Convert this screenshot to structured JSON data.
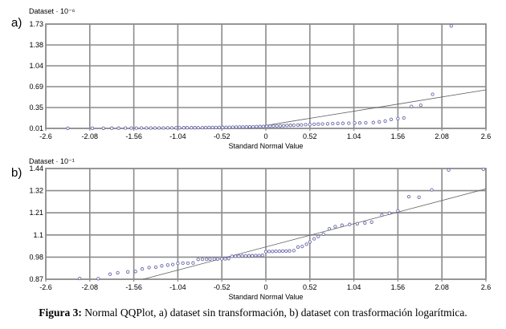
{
  "figure": {
    "caption_label": "Figura 3:",
    "caption_text": " Normal QQPlot, a) dataset sin transformación, b) dataset con trasformación logarítmica."
  },
  "style": {
    "grid_color": "#8b8b8b",
    "marker_color": "#6b6bab",
    "line_color": "#5c5c5c",
    "text_color": "#000000",
    "background": "#ffffff"
  },
  "chart_data": [
    {
      "type": "scatter",
      "panel": "a)",
      "ylabel": "Dataset · 10⁻⁶",
      "xlabel": "Standard Normal Value",
      "legend": null,
      "grid": true,
      "xlim": [
        -2.6,
        2.6
      ],
      "ylim": [
        0.01,
        1.73
      ],
      "xtick_labels": [
        "-2.6",
        "-2.08",
        "-1.56",
        "-1.04",
        "-0.52",
        "0",
        "0.52",
        "1.04",
        "1.56",
        "2.08",
        "2.6"
      ],
      "ytick_labels": [
        "1.73",
        "1.38",
        "1.04",
        "0.69",
        "0.35",
        "0.01"
      ],
      "reference_line": [
        [
          -0.215,
          0.01
        ],
        [
          2.6,
          0.645
        ]
      ],
      "points": [
        [
          -2.34,
          0.012
        ],
        [
          -2.05,
          0.013
        ],
        [
          -1.92,
          0.013
        ],
        [
          -1.82,
          0.014
        ],
        [
          -1.74,
          0.014
        ],
        [
          -1.66,
          0.015
        ],
        [
          -1.59,
          0.015
        ],
        [
          -1.53,
          0.015
        ],
        [
          -1.47,
          0.016
        ],
        [
          -1.41,
          0.016
        ],
        [
          -1.36,
          0.016
        ],
        [
          -1.31,
          0.017
        ],
        [
          -1.26,
          0.017
        ],
        [
          -1.21,
          0.017
        ],
        [
          -1.16,
          0.018
        ],
        [
          -1.11,
          0.018
        ],
        [
          -1.06,
          0.019
        ],
        [
          -1.02,
          0.019
        ],
        [
          -0.97,
          0.02
        ],
        [
          -0.93,
          0.02
        ],
        [
          -0.88,
          0.021
        ],
        [
          -0.84,
          0.021
        ],
        [
          -0.8,
          0.022
        ],
        [
          -0.75,
          0.022
        ],
        [
          -0.71,
          0.023
        ],
        [
          -0.67,
          0.024
        ],
        [
          -0.63,
          0.024
        ],
        [
          -0.59,
          0.025
        ],
        [
          -0.55,
          0.026
        ],
        [
          -0.51,
          0.027
        ],
        [
          -0.47,
          0.028
        ],
        [
          -0.43,
          0.029
        ],
        [
          -0.39,
          0.03
        ],
        [
          -0.35,
          0.031
        ],
        [
          -0.31,
          0.032
        ],
        [
          -0.27,
          0.033
        ],
        [
          -0.23,
          0.034
        ],
        [
          -0.19,
          0.036
        ],
        [
          -0.15,
          0.037
        ],
        [
          -0.11,
          0.039
        ],
        [
          -0.07,
          0.04
        ],
        [
          -0.03,
          0.042
        ],
        [
          0.01,
          0.044
        ],
        [
          0.05,
          0.046
        ],
        [
          0.09,
          0.048
        ],
        [
          0.13,
          0.05
        ],
        [
          0.17,
          0.052
        ],
        [
          0.21,
          0.055
        ],
        [
          0.25,
          0.057
        ],
        [
          0.29,
          0.06
        ],
        [
          0.33,
          0.062
        ],
        [
          0.38,
          0.065
        ],
        [
          0.42,
          0.068
        ],
        [
          0.47,
          0.071
        ],
        [
          0.52,
          0.074
        ],
        [
          0.57,
          0.077
        ],
        [
          0.62,
          0.08
        ],
        [
          0.67,
          0.083
        ],
        [
          0.73,
          0.086
        ],
        [
          0.79,
          0.089
        ],
        [
          0.85,
          0.092
        ],
        [
          0.91,
          0.094
        ],
        [
          0.98,
          0.096
        ],
        [
          1.05,
          0.098
        ],
        [
          1.11,
          0.1
        ],
        [
          1.18,
          0.103
        ],
        [
          1.27,
          0.106
        ],
        [
          1.34,
          0.118
        ],
        [
          1.41,
          0.132
        ],
        [
          1.48,
          0.158
        ],
        [
          1.56,
          0.172
        ],
        [
          1.63,
          0.182
        ],
        [
          1.72,
          0.372
        ],
        [
          1.83,
          0.392
        ],
        [
          1.97,
          0.572
        ],
        [
          2.19,
          1.7
        ]
      ]
    },
    {
      "type": "scatter",
      "panel": "b)",
      "ylabel": "Dataset · 10⁻¹",
      "xlabel": "Standard Normal Value",
      "legend": null,
      "grid": true,
      "xlim": [
        -2.6,
        2.6
      ],
      "ylim": [
        0.87,
        1.44
      ],
      "xtick_labels": [
        "-2.6",
        "-2.08",
        "-1.56",
        "-1.04",
        "-0.52",
        "0",
        "0.52",
        "1.04",
        "1.56",
        "2.08",
        "2.6"
      ],
      "ytick_labels": [
        "1.44",
        "1.32",
        "1.21",
        "1.1",
        "0.98",
        "0.87"
      ],
      "reference_line": [
        [
          -1.45,
          0.87
        ],
        [
          2.6,
          1.335
        ]
      ],
      "points": [
        [
          -2.2,
          0.874
        ],
        [
          -1.98,
          0.873
        ],
        [
          -1.84,
          0.896
        ],
        [
          -1.75,
          0.903
        ],
        [
          -1.63,
          0.908
        ],
        [
          -1.54,
          0.91
        ],
        [
          -1.46,
          0.923
        ],
        [
          -1.38,
          0.93
        ],
        [
          -1.3,
          0.932
        ],
        [
          -1.23,
          0.939
        ],
        [
          -1.16,
          0.943
        ],
        [
          -1.1,
          0.946
        ],
        [
          -1.04,
          0.952
        ],
        [
          -0.98,
          0.953
        ],
        [
          -0.92,
          0.953
        ],
        [
          -0.86,
          0.954
        ],
        [
          -0.8,
          0.972
        ],
        [
          -0.75,
          0.973
        ],
        [
          -0.7,
          0.973
        ],
        [
          -0.66,
          0.974
        ],
        [
          -0.61,
          0.974
        ],
        [
          -0.57,
          0.974
        ],
        [
          -0.52,
          0.975
        ],
        [
          -0.48,
          0.975
        ],
        [
          -0.44,
          0.976
        ],
        [
          -0.4,
          0.988
        ],
        [
          -0.36,
          0.989
        ],
        [
          -0.32,
          0.989
        ],
        [
          -0.28,
          0.99
        ],
        [
          -0.24,
          0.99
        ],
        [
          -0.2,
          0.991
        ],
        [
          -0.16,
          0.991
        ],
        [
          -0.12,
          0.992
        ],
        [
          -0.08,
          0.992
        ],
        [
          -0.04,
          0.993
        ],
        [
          0.0,
          1.012
        ],
        [
          0.04,
          1.013
        ],
        [
          0.08,
          1.013
        ],
        [
          0.12,
          1.014
        ],
        [
          0.16,
          1.014
        ],
        [
          0.2,
          1.015
        ],
        [
          0.24,
          1.015
        ],
        [
          0.28,
          1.016
        ],
        [
          0.33,
          1.017
        ],
        [
          0.38,
          1.036
        ],
        [
          0.43,
          1.039
        ],
        [
          0.48,
          1.05
        ],
        [
          0.52,
          1.062
        ],
        [
          0.57,
          1.078
        ],
        [
          0.62,
          1.09
        ],
        [
          0.68,
          1.102
        ],
        [
          0.75,
          1.13
        ],
        [
          0.82,
          1.141
        ],
        [
          0.9,
          1.148
        ],
        [
          0.99,
          1.152
        ],
        [
          1.08,
          1.156
        ],
        [
          1.17,
          1.16
        ],
        [
          1.25,
          1.164
        ],
        [
          1.37,
          1.2
        ],
        [
          1.46,
          1.21
        ],
        [
          1.56,
          1.222
        ],
        [
          1.69,
          1.295
        ],
        [
          1.81,
          1.292
        ],
        [
          1.96,
          1.33
        ],
        [
          2.16,
          1.432
        ],
        [
          2.57,
          1.436
        ]
      ]
    }
  ]
}
